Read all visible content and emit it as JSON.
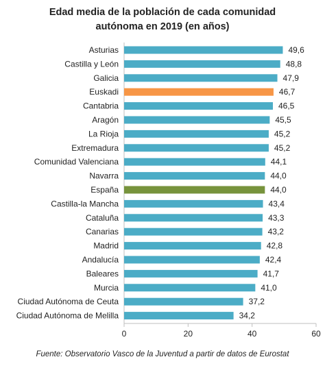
{
  "chart_data": {
    "type": "bar",
    "orientation": "horizontal",
    "title_line1": "Edad media de la población de cada comunidad",
    "title_line2": "autónoma en 2019 (en años)",
    "categories": [
      "Asturias",
      "Castilla y León",
      "Galicia",
      "Euskadi",
      "Cantabria",
      "Aragón",
      "La Rioja",
      "Extremadura",
      "Comunidad Valenciana",
      "Navarra",
      "España",
      "Castilla-la Mancha",
      "Cataluña",
      "Canarias",
      "Madrid",
      "Andalucía",
      "Baleares",
      "Murcia",
      "Ciudad Autónoma de Ceuta",
      "Ciudad Autónoma de Melilla"
    ],
    "values": [
      49.6,
      48.8,
      47.9,
      46.7,
      46.5,
      45.5,
      45.2,
      45.2,
      44.1,
      44.0,
      44.0,
      43.4,
      43.3,
      43.2,
      42.8,
      42.4,
      41.7,
      41.0,
      37.2,
      34.2
    ],
    "value_labels": [
      "49,6",
      "48,8",
      "47,9",
      "46,7",
      "46,5",
      "45,5",
      "45,2",
      "45,2",
      "44,1",
      "44,0",
      "44,0",
      "43,4",
      "43,3",
      "43,2",
      "42,8",
      "42,4",
      "41,7",
      "41,0",
      "37,2",
      "34,2"
    ],
    "xlim": [
      0,
      60
    ],
    "xticks": [
      0,
      20,
      40,
      60
    ],
    "grid": false,
    "legend": "none",
    "colors": {
      "default": "#4bacc6",
      "highlight": "#f79646",
      "total": "#77933c"
    },
    "highlight_categories": {
      "Euskadi": "highlight",
      "España": "total"
    },
    "source": "Fuente: Observatorio Vasco de la Juventud a partir de datos de Eurostat"
  }
}
